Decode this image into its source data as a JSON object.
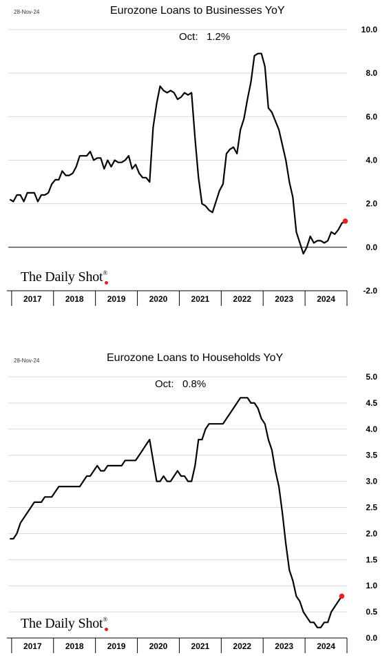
{
  "charts": [
    {
      "date_label": "28-Nov-24",
      "title": "Eurozone Loans to Businesses YoY",
      "note_label": "Oct:",
      "note_value": "1.2%",
      "logo": "The Daily Shot",
      "logo_mark": "®"
    },
    {
      "date_label": "28-Nov-24",
      "title": "Eurozone Loans to Households YoY",
      "note_label": "Oct:",
      "note_value": "0.8%",
      "logo": "The Daily Shot",
      "logo_mark": "®"
    }
  ],
  "chart_data": [
    {
      "type": "line",
      "title": "Eurozone Loans to Businesses YoY",
      "ylim": [
        -2.0,
        10.0
      ],
      "yticks": [
        10.0,
        8.0,
        6.0,
        4.0,
        2.0,
        0.0,
        -2.0
      ],
      "ytick_labels": [
        "10.0",
        "8.0",
        "6.0",
        "4.0",
        "2.0",
        "0.0",
        "-2.0"
      ],
      "xlim": [
        2016.92,
        2025.0
      ],
      "x_tick_labels": [
        "2017",
        "2018",
        "2019",
        "2020",
        "2021",
        "2022",
        "2023",
        "2024"
      ],
      "grid": true,
      "zero_line": true,
      "line_color": "#000000",
      "marker_color": "#e8211f",
      "start": "2016-12",
      "values": [
        2.2,
        2.1,
        2.4,
        2.4,
        2.1,
        2.5,
        2.5,
        2.5,
        2.1,
        2.4,
        2.4,
        2.5,
        2.9,
        3.1,
        3.1,
        3.5,
        3.3,
        3.3,
        3.4,
        3.7,
        4.2,
        4.2,
        4.2,
        4.4,
        4.0,
        4.1,
        4.1,
        3.6,
        4.0,
        3.7,
        4.0,
        3.9,
        3.9,
        4.0,
        4.2,
        3.6,
        3.8,
        3.4,
        3.2,
        3.2,
        3.0,
        5.5,
        6.6,
        7.4,
        7.2,
        7.1,
        7.2,
        7.1,
        6.8,
        6.9,
        7.1,
        7.0,
        7.1,
        5.0,
        3.2,
        2.0,
        1.9,
        1.7,
        1.6,
        2.1,
        2.6,
        2.9,
        4.3,
        4.5,
        4.6,
        4.3,
        5.4,
        5.9,
        6.8,
        7.6,
        8.8,
        8.9,
        8.9,
        8.3,
        6.4,
        6.2,
        5.8,
        5.4,
        4.7,
        4.0,
        3.0,
        2.3,
        0.7,
        0.2,
        -0.3,
        0.0,
        0.5,
        0.2,
        0.3,
        0.3,
        0.2,
        0.3,
        0.7,
        0.6,
        0.8,
        1.1,
        1.2
      ],
      "last_point": {
        "label": "Oct",
        "value": 1.2
      }
    },
    {
      "type": "line",
      "title": "Eurozone Loans to Households YoY",
      "ylim": [
        0.0,
        5.0
      ],
      "yticks": [
        5.0,
        4.5,
        4.0,
        3.5,
        3.0,
        2.5,
        2.0,
        1.5,
        1.0,
        0.5,
        0.0
      ],
      "ytick_labels": [
        "5.0",
        "4.5",
        "4.0",
        "3.5",
        "3.0",
        "2.5",
        "2.0",
        "1.5",
        "1.0",
        "0.5",
        "0.0"
      ],
      "xlim": [
        2016.92,
        2025.0
      ],
      "x_tick_labels": [
        "2017",
        "2018",
        "2019",
        "2020",
        "2021",
        "2022",
        "2023",
        "2024"
      ],
      "grid": true,
      "zero_line": false,
      "line_color": "#000000",
      "marker_color": "#e8211f",
      "start": "2016-12",
      "values": [
        1.9,
        1.9,
        2.0,
        2.2,
        2.3,
        2.4,
        2.5,
        2.6,
        2.6,
        2.6,
        2.7,
        2.7,
        2.7,
        2.8,
        2.9,
        2.9,
        2.9,
        2.9,
        2.9,
        2.9,
        2.9,
        3.0,
        3.1,
        3.1,
        3.2,
        3.3,
        3.2,
        3.2,
        3.3,
        3.3,
        3.3,
        3.3,
        3.3,
        3.4,
        3.4,
        3.4,
        3.4,
        3.5,
        3.6,
        3.7,
        3.8,
        3.4,
        3.0,
        3.0,
        3.1,
        3.0,
        3.0,
        3.1,
        3.2,
        3.1,
        3.1,
        3.0,
        3.0,
        3.3,
        3.8,
        3.8,
        4.0,
        4.1,
        4.1,
        4.1,
        4.1,
        4.1,
        4.2,
        4.3,
        4.4,
        4.5,
        4.6,
        4.6,
        4.6,
        4.5,
        4.5,
        4.4,
        4.2,
        4.1,
        3.8,
        3.6,
        3.2,
        2.9,
        2.4,
        1.8,
        1.3,
        1.1,
        0.8,
        0.7,
        0.5,
        0.4,
        0.3,
        0.3,
        0.2,
        0.2,
        0.3,
        0.3,
        0.5,
        0.6,
        0.7,
        0.8
      ],
      "last_point": {
        "label": "Oct",
        "value": 0.8
      }
    }
  ]
}
